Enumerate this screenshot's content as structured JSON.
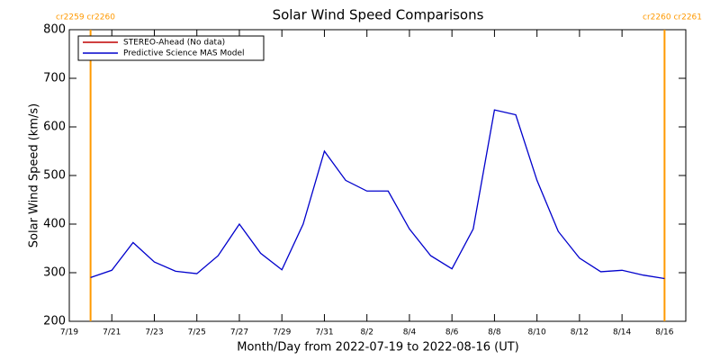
{
  "chart_data": {
    "type": "line",
    "title": "Solar Wind Speed Comparisons",
    "xlabel": "Month/Day from 2022-07-19 to 2022-08-16 (UT)",
    "ylabel": "Solar Wind Speed (km/s)",
    "x": [
      "2022-07-20",
      "2022-07-21",
      "2022-07-22",
      "2022-07-23",
      "2022-07-24",
      "2022-07-25",
      "2022-07-26",
      "2022-07-27",
      "2022-07-28",
      "2022-07-29",
      "2022-07-30",
      "2022-07-31",
      "2022-08-01",
      "2022-08-02",
      "2022-08-03",
      "2022-08-04",
      "2022-08-05",
      "2022-08-06",
      "2022-08-07",
      "2022-08-08",
      "2022-08-09",
      "2022-08-10",
      "2022-08-11",
      "2022-08-12",
      "2022-08-13",
      "2022-08-14",
      "2022-08-15",
      "2022-08-16"
    ],
    "series": [
      {
        "name": "STEREO-Ahead (No data)",
        "color": "#c00000",
        "values": [
          null,
          null,
          null,
          null,
          null,
          null,
          null,
          null,
          null,
          null,
          null,
          null,
          null,
          null,
          null,
          null,
          null,
          null,
          null,
          null,
          null,
          null,
          null,
          null,
          null,
          null,
          null,
          null
        ]
      },
      {
        "name": "Predictive Science MAS Model",
        "color": "#0000cc",
        "values": [
          290,
          305,
          362,
          322,
          303,
          298,
          335,
          400,
          340,
          306,
          400,
          550,
          490,
          468,
          468,
          390,
          335,
          308,
          390,
          635,
          625,
          490,
          385,
          330,
          302,
          305,
          295,
          288
        ]
      }
    ],
    "xlim": [
      "2022-07-19",
      "2022-08-17"
    ],
    "xticks": [
      {
        "value": "2022-07-19",
        "label": "7/19"
      },
      {
        "value": "2022-07-21",
        "label": "7/21"
      },
      {
        "value": "2022-07-23",
        "label": "7/23"
      },
      {
        "value": "2022-07-25",
        "label": "7/25"
      },
      {
        "value": "2022-07-27",
        "label": "7/27"
      },
      {
        "value": "2022-07-29",
        "label": "7/29"
      },
      {
        "value": "2022-07-31",
        "label": "7/31"
      },
      {
        "value": "2022-08-02",
        "label": "8/2"
      },
      {
        "value": "2022-08-04",
        "label": "8/4"
      },
      {
        "value": "2022-08-06",
        "label": "8/6"
      },
      {
        "value": "2022-08-08",
        "label": "8/8"
      },
      {
        "value": "2022-08-10",
        "label": "8/10"
      },
      {
        "value": "2022-08-12",
        "label": "8/12"
      },
      {
        "value": "2022-08-14",
        "label": "8/14"
      },
      {
        "value": "2022-08-16",
        "label": "8/16"
      }
    ],
    "ylim": [
      200,
      800
    ],
    "yticks": [
      200,
      300,
      400,
      500,
      600,
      700,
      800
    ],
    "legend": "upper left",
    "annotations": [
      {
        "x": "2022-07-20",
        "text": "cr2259 cr2260",
        "color": "#ff9900"
      },
      {
        "x": "2022-08-16",
        "text": "cr2260 cr2261",
        "color": "#ff9900"
      }
    ]
  }
}
